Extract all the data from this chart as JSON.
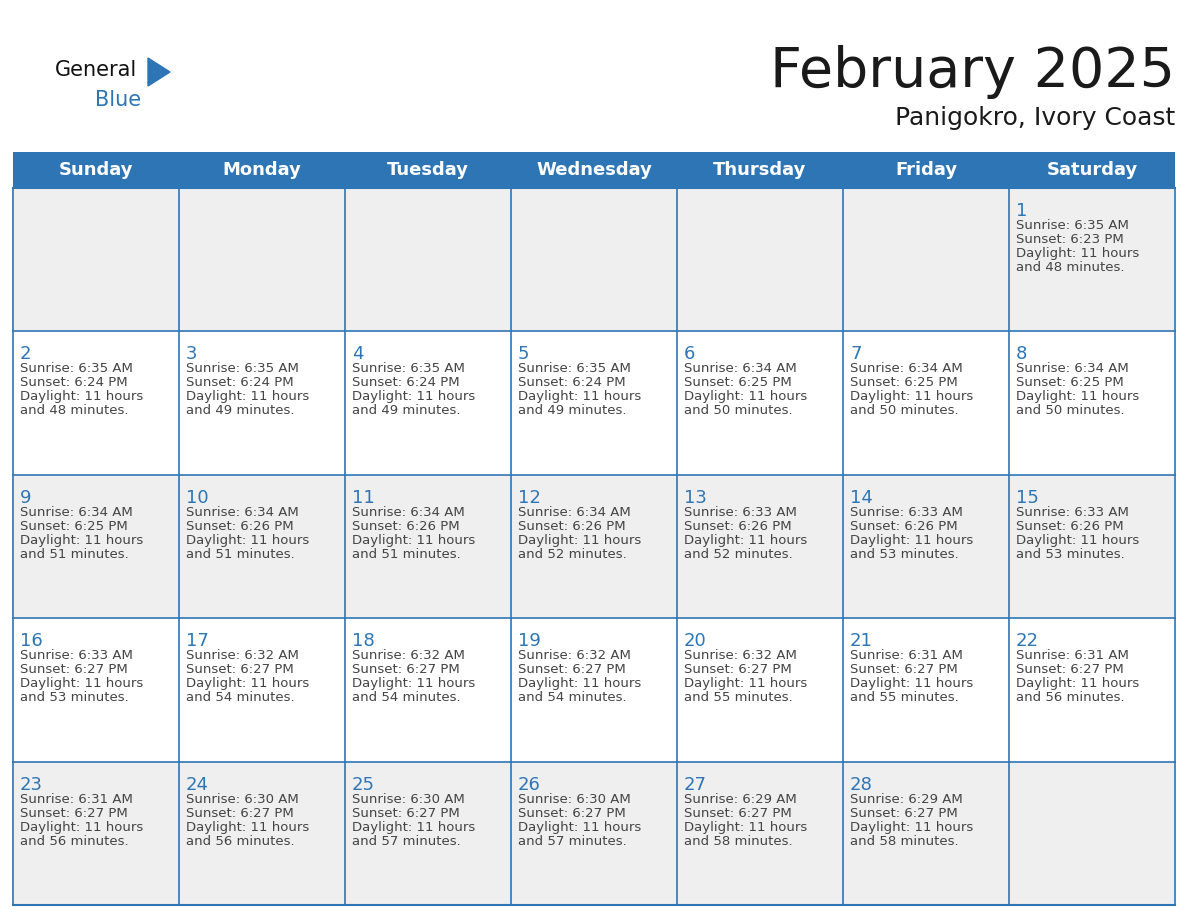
{
  "title": "February 2025",
  "subtitle": "Panigokro, Ivory Coast",
  "header_bg": "#2E75B6",
  "header_text_color": "#FFFFFF",
  "border_color": "#2E75B6",
  "day_number_color": "#2E75B6",
  "cell_text_color": "#444444",
  "odd_row_bg": "#F2F2F2",
  "even_row_bg": "#FFFFFF",
  "days_of_week": [
    "Sunday",
    "Monday",
    "Tuesday",
    "Wednesday",
    "Thursday",
    "Friday",
    "Saturday"
  ],
  "weeks": [
    [
      {
        "day": "",
        "sunrise": "",
        "sunset": "",
        "daylight": ""
      },
      {
        "day": "",
        "sunrise": "",
        "sunset": "",
        "daylight": ""
      },
      {
        "day": "",
        "sunrise": "",
        "sunset": "",
        "daylight": ""
      },
      {
        "day": "",
        "sunrise": "",
        "sunset": "",
        "daylight": ""
      },
      {
        "day": "",
        "sunrise": "",
        "sunset": "",
        "daylight": ""
      },
      {
        "day": "",
        "sunrise": "",
        "sunset": "",
        "daylight": ""
      },
      {
        "day": "1",
        "sunrise": "6:35 AM",
        "sunset": "6:23 PM",
        "daylight": "11 hours and 48 minutes."
      }
    ],
    [
      {
        "day": "2",
        "sunrise": "6:35 AM",
        "sunset": "6:24 PM",
        "daylight": "11 hours and 48 minutes."
      },
      {
        "day": "3",
        "sunrise": "6:35 AM",
        "sunset": "6:24 PM",
        "daylight": "11 hours and 49 minutes."
      },
      {
        "day": "4",
        "sunrise": "6:35 AM",
        "sunset": "6:24 PM",
        "daylight": "11 hours and 49 minutes."
      },
      {
        "day": "5",
        "sunrise": "6:35 AM",
        "sunset": "6:24 PM",
        "daylight": "11 hours and 49 minutes."
      },
      {
        "day": "6",
        "sunrise": "6:34 AM",
        "sunset": "6:25 PM",
        "daylight": "11 hours and 50 minutes."
      },
      {
        "day": "7",
        "sunrise": "6:34 AM",
        "sunset": "6:25 PM",
        "daylight": "11 hours and 50 minutes."
      },
      {
        "day": "8",
        "sunrise": "6:34 AM",
        "sunset": "6:25 PM",
        "daylight": "11 hours and 50 minutes."
      }
    ],
    [
      {
        "day": "9",
        "sunrise": "6:34 AM",
        "sunset": "6:25 PM",
        "daylight": "11 hours and 51 minutes."
      },
      {
        "day": "10",
        "sunrise": "6:34 AM",
        "sunset": "6:26 PM",
        "daylight": "11 hours and 51 minutes."
      },
      {
        "day": "11",
        "sunrise": "6:34 AM",
        "sunset": "6:26 PM",
        "daylight": "11 hours and 51 minutes."
      },
      {
        "day": "12",
        "sunrise": "6:34 AM",
        "sunset": "6:26 PM",
        "daylight": "11 hours and 52 minutes."
      },
      {
        "day": "13",
        "sunrise": "6:33 AM",
        "sunset": "6:26 PM",
        "daylight": "11 hours and 52 minutes."
      },
      {
        "day": "14",
        "sunrise": "6:33 AM",
        "sunset": "6:26 PM",
        "daylight": "11 hours and 53 minutes."
      },
      {
        "day": "15",
        "sunrise": "6:33 AM",
        "sunset": "6:26 PM",
        "daylight": "11 hours and 53 minutes."
      }
    ],
    [
      {
        "day": "16",
        "sunrise": "6:33 AM",
        "sunset": "6:27 PM",
        "daylight": "11 hours and 53 minutes."
      },
      {
        "day": "17",
        "sunrise": "6:32 AM",
        "sunset": "6:27 PM",
        "daylight": "11 hours and 54 minutes."
      },
      {
        "day": "18",
        "sunrise": "6:32 AM",
        "sunset": "6:27 PM",
        "daylight": "11 hours and 54 minutes."
      },
      {
        "day": "19",
        "sunrise": "6:32 AM",
        "sunset": "6:27 PM",
        "daylight": "11 hours and 54 minutes."
      },
      {
        "day": "20",
        "sunrise": "6:32 AM",
        "sunset": "6:27 PM",
        "daylight": "11 hours and 55 minutes."
      },
      {
        "day": "21",
        "sunrise": "6:31 AM",
        "sunset": "6:27 PM",
        "daylight": "11 hours and 55 minutes."
      },
      {
        "day": "22",
        "sunrise": "6:31 AM",
        "sunset": "6:27 PM",
        "daylight": "11 hours and 56 minutes."
      }
    ],
    [
      {
        "day": "23",
        "sunrise": "6:31 AM",
        "sunset": "6:27 PM",
        "daylight": "11 hours and 56 minutes."
      },
      {
        "day": "24",
        "sunrise": "6:30 AM",
        "sunset": "6:27 PM",
        "daylight": "11 hours and 56 minutes."
      },
      {
        "day": "25",
        "sunrise": "6:30 AM",
        "sunset": "6:27 PM",
        "daylight": "11 hours and 57 minutes."
      },
      {
        "day": "26",
        "sunrise": "6:30 AM",
        "sunset": "6:27 PM",
        "daylight": "11 hours and 57 minutes."
      },
      {
        "day": "27",
        "sunrise": "6:29 AM",
        "sunset": "6:27 PM",
        "daylight": "11 hours and 58 minutes."
      },
      {
        "day": "28",
        "sunrise": "6:29 AM",
        "sunset": "6:27 PM",
        "daylight": "11 hours and 58 minutes."
      },
      {
        "day": "",
        "sunrise": "",
        "sunset": "",
        "daylight": ""
      }
    ]
  ]
}
